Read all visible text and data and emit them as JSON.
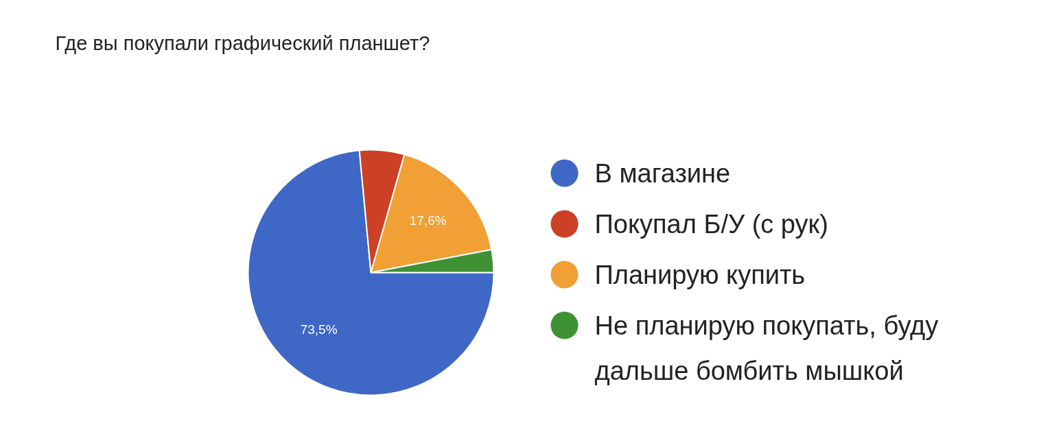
{
  "chart_data": {
    "type": "pie",
    "title": "Где вы покупали графический планшет?",
    "categories": [
      "В магазине",
      "Покупал Б/У (с рук)",
      "Планирую купить",
      "Не планирую покупать, буду дальше бомбить мышкой"
    ],
    "values": [
      73.5,
      5.9,
      17.6,
      3.0
    ],
    "colors": [
      "#3e67c6",
      "#cc4125",
      "#f0a035",
      "#3f9234"
    ],
    "value_labels": [
      "73,5%",
      null,
      "17,6%",
      null
    ],
    "legend": "right"
  }
}
